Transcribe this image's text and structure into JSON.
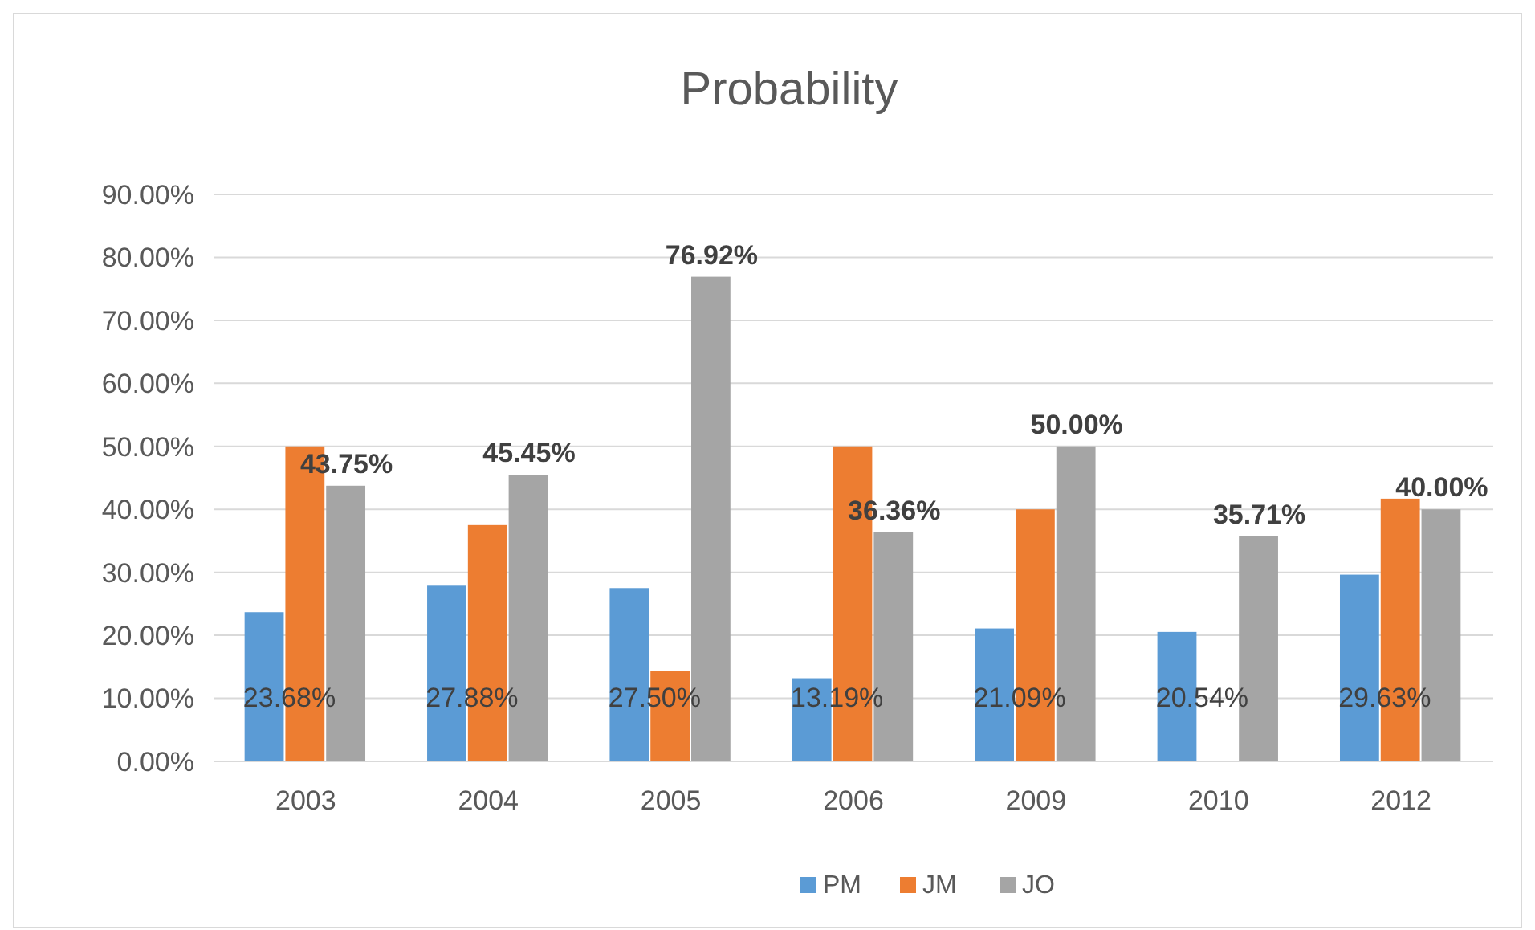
{
  "chart_data": {
    "type": "bar",
    "title": "Probability",
    "categories": [
      "2003",
      "2004",
      "2005",
      "2006",
      "2009",
      "2010",
      "2012"
    ],
    "series": [
      {
        "name": "PM",
        "color": "#5b9bd5",
        "values": [
          23.68,
          27.88,
          27.5,
          13.19,
          21.09,
          20.54,
          29.63
        ],
        "value_labels": [
          "23.68%",
          "27.88%",
          "27.50%",
          "13.19%",
          "21.09%",
          "20.54%",
          "29.63%"
        ]
      },
      {
        "name": "JM",
        "color": "#ed7d31",
        "values": [
          50,
          37.5,
          14.3,
          50,
          40,
          0,
          41.7
        ]
      },
      {
        "name": "JO",
        "color": "#a5a5a5",
        "values": [
          43.75,
          45.45,
          76.92,
          36.36,
          50,
          35.71,
          40
        ],
        "value_labels": [
          "43.75%",
          "45.45%",
          "76.92%",
          "36.36%",
          "50.00%",
          "35.71%",
          "40.00%"
        ]
      }
    ],
    "ylim": [
      0,
      90
    ],
    "yticks": [
      {
        "value": 0,
        "label": "0.00%"
      },
      {
        "value": 10,
        "label": "10.00%"
      },
      {
        "value": 20,
        "label": "20.00%"
      },
      {
        "value": 30,
        "label": "30.00%"
      },
      {
        "value": 40,
        "label": "40.00%"
      },
      {
        "value": 50,
        "label": "50.00%"
      },
      {
        "value": 60,
        "label": "60.00%"
      },
      {
        "value": 70,
        "label": "70.00%"
      },
      {
        "value": 80,
        "label": "80.00%"
      },
      {
        "value": 90,
        "label": "90.00%"
      }
    ],
    "grid": "y",
    "legend": "bottom"
  }
}
